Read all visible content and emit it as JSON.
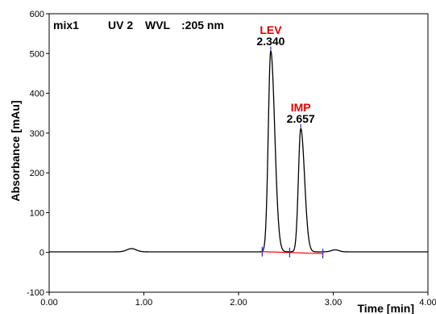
{
  "header": {
    "sample": "mix1",
    "detector": "UV 2",
    "wvl_label": "WVL",
    "wvl_value": ":205 nm"
  },
  "colors": {
    "trace": "#000000",
    "baseline": "#ff0000",
    "peak_label": "#e00000",
    "marker": "#3333cc",
    "frame": "#000000"
  },
  "chart_data": {
    "type": "line",
    "title": "",
    "xlabel": "Time [min]",
    "ylabel": "Absorbance [mAu]",
    "xlim": [
      0.0,
      4.0
    ],
    "ylim": [
      -100,
      600
    ],
    "x_ticks": [
      0.0,
      1.0,
      2.0,
      3.0,
      4.0
    ],
    "x_tick_labels": [
      "0.00",
      "1.00",
      "2.00",
      "3.00",
      "4.00"
    ],
    "y_ticks": [
      -100,
      0,
      100,
      200,
      300,
      400,
      500,
      600
    ],
    "y_tick_labels": [
      "-100",
      "0",
      "100",
      "200",
      "300",
      "400",
      "500",
      "600"
    ],
    "grid": false,
    "baseline_level": 1.5,
    "bumps": [
      {
        "center": 0.87,
        "height": 8,
        "width": 0.05
      },
      {
        "center": 3.02,
        "height": 5,
        "width": 0.04
      }
    ],
    "peaks": [
      {
        "name": "LEV",
        "retention_time": 2.34,
        "rt_label": "2.340",
        "height": 505,
        "width_left": 0.026,
        "width_right": 0.042
      },
      {
        "name": "IMP",
        "retention_time": 2.657,
        "rt_label": "2.657",
        "height": 310,
        "width_left": 0.025,
        "width_right": 0.04
      }
    ],
    "integration_baseline": [
      {
        "x": 2.25,
        "y": 2
      },
      {
        "x": 2.89,
        "y": -3
      }
    ],
    "integration_markers": [
      2.25,
      2.54,
      2.89
    ]
  }
}
